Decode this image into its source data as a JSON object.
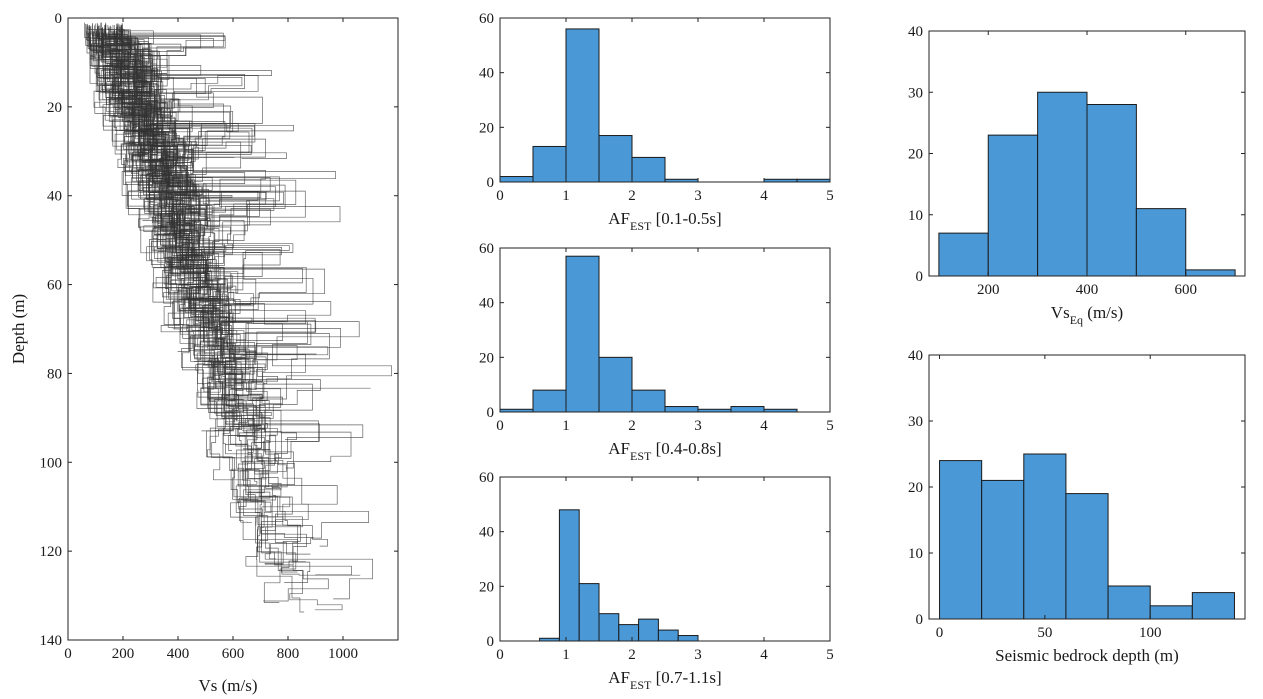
{
  "chart_data": [
    {
      "type": "line",
      "xlabel": "Vs (m/s)",
      "ylabel": "Depth (m)",
      "xlim": [
        0,
        1200
      ],
      "ylim": [
        0,
        140
      ],
      "y_reversed": true,
      "xticks": [
        0,
        200,
        400,
        600,
        800,
        1000
      ],
      "yticks": [
        0,
        20,
        40,
        60,
        80,
        100,
        120,
        140
      ],
      "profile_count": 100,
      "grid": false
    },
    {
      "type": "bar",
      "histogram": true,
      "xlabel_main": "AF",
      "xlabel_sub": "EST",
      "xlabel_tail": "[0.1-0.5s]",
      "bin_edges": [
        0,
        0.5,
        1,
        1.5,
        2,
        2.5,
        3,
        3.5,
        4,
        4.5,
        5
      ],
      "values": [
        2,
        13,
        56,
        17,
        9,
        1,
        0,
        0,
        1,
        1
      ],
      "xlim": [
        0,
        5
      ],
      "ylim": [
        0,
        60
      ],
      "xticks": [
        0,
        1,
        2,
        3,
        4,
        5
      ],
      "yticks": [
        0,
        20,
        40,
        60
      ]
    },
    {
      "type": "bar",
      "histogram": true,
      "xlabel_main": "AF",
      "xlabel_sub": "EST",
      "xlabel_tail": "[0.4-0.8s]",
      "bin_edges": [
        0,
        0.5,
        1,
        1.5,
        2,
        2.5,
        3,
        3.5,
        4,
        4.5
      ],
      "values": [
        1,
        8,
        57,
        20,
        8,
        2,
        1,
        2,
        1
      ],
      "xlim": [
        0,
        5
      ],
      "ylim": [
        0,
        60
      ],
      "xticks": [
        0,
        1,
        2,
        3,
        4,
        5
      ],
      "yticks": [
        0,
        20,
        40,
        60
      ]
    },
    {
      "type": "bar",
      "histogram": true,
      "xlabel_main": "AF",
      "xlabel_sub": "EST",
      "xlabel_tail": "[0.7-1.1s]",
      "bin_edges": [
        0.6,
        0.9,
        1.2,
        1.5,
        1.8,
        2.1,
        2.4,
        2.7,
        3.0
      ],
      "values": [
        1,
        48,
        21,
        10,
        6,
        8,
        4,
        2
      ],
      "xlim": [
        0,
        5
      ],
      "ylim": [
        0,
        60
      ],
      "xticks": [
        0,
        1,
        2,
        3,
        4,
        5
      ],
      "yticks": [
        0,
        20,
        40,
        60
      ]
    },
    {
      "type": "bar",
      "histogram": true,
      "xlabel_main": "Vs",
      "xlabel_sub": "Eq",
      "xlabel_tail": "(m/s)",
      "bin_edges": [
        100,
        200,
        300,
        400,
        500,
        600,
        700
      ],
      "values": [
        7,
        23,
        30,
        28,
        11,
        1
      ],
      "xlim": [
        80,
        720
      ],
      "ylim": [
        0,
        40
      ],
      "xticks": [
        200,
        400,
        600
      ],
      "yticks": [
        0,
        10,
        20,
        30,
        40
      ]
    },
    {
      "type": "bar",
      "histogram": true,
      "xlabel_main": "Seismic bedrock depth (m)",
      "xlabel_sub": "",
      "xlabel_tail": "",
      "bin_edges": [
        0,
        20,
        40,
        60,
        80,
        100,
        120,
        140
      ],
      "values": [
        24,
        21,
        25,
        19,
        5,
        2,
        4
      ],
      "xlim": [
        -5,
        145
      ],
      "ylim": [
        0,
        40
      ],
      "xticks": [
        0,
        50,
        100
      ],
      "yticks": [
        0,
        10,
        20,
        30,
        40
      ]
    }
  ]
}
